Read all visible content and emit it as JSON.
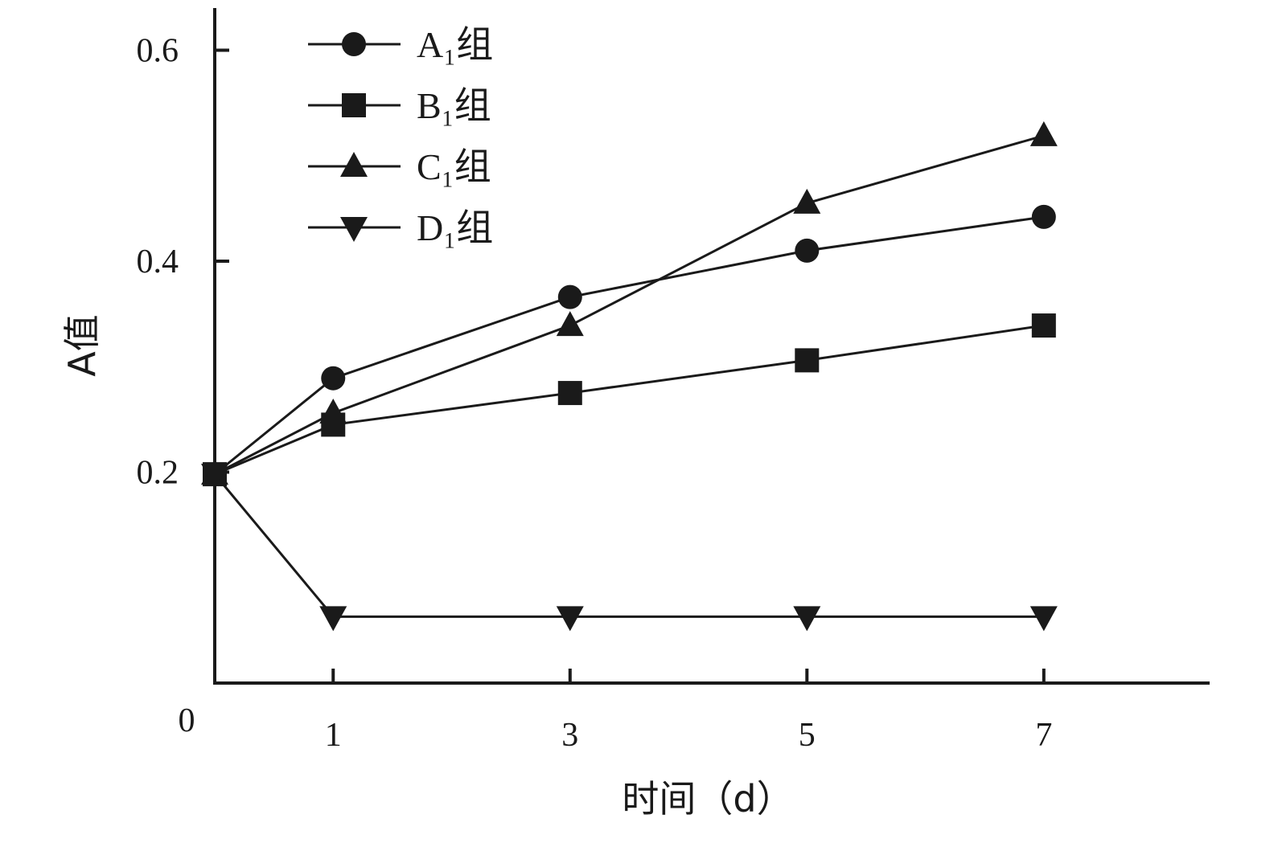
{
  "chart_data": {
    "type": "line",
    "xlabel": "时间（d）",
    "ylabel": "A值",
    "x": [
      0,
      1,
      3,
      5,
      7
    ],
    "x_ticks": [
      1,
      3,
      5,
      7
    ],
    "x_ticks_labels": [
      "1",
      "3",
      "5",
      "7"
    ],
    "origin_label": "0",
    "y_ticks": [
      0.2,
      0.4,
      0.6
    ],
    "y_ticks_labels": [
      "0.2",
      "0.4",
      "0.6"
    ],
    "xlim": [
      0,
      8.4
    ],
    "ylim": [
      0.0,
      0.64
    ],
    "legend_position": "top-left",
    "grid": false,
    "series": [
      {
        "name": "A₁组",
        "marker": "circle",
        "values": [
          0.198,
          0.289,
          0.366,
          0.41,
          0.442
        ]
      },
      {
        "name": "B₁组",
        "marker": "square",
        "values": [
          0.198,
          0.245,
          0.275,
          0.306,
          0.339
        ]
      },
      {
        "name": "C₁组",
        "marker": "triangle-up",
        "values": [
          0.198,
          0.256,
          0.339,
          0.455,
          0.519
        ]
      },
      {
        "name": "D₁组",
        "marker": "triangle-down",
        "values": [
          0.198,
          0.063,
          0.063,
          0.063,
          0.063
        ]
      }
    ],
    "colors": {
      "line": "#1a1a1a",
      "marker": "#1a1a1a"
    }
  }
}
